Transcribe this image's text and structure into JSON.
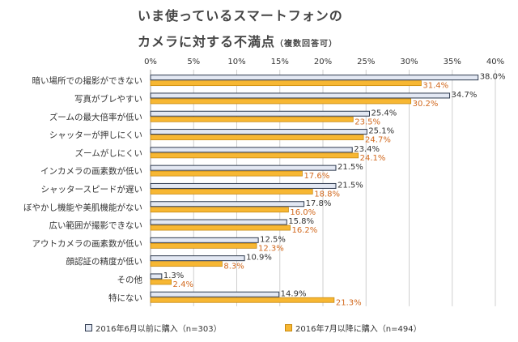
{
  "title": {
    "line1": "いま使っているスマートフォンの",
    "line2": "カメラに対する不満点",
    "note": "（複数回答可）"
  },
  "legend": {
    "series1": "2016年6月以前に購入（n=303）",
    "series2": "2016年7月以降に購入（n=494）"
  },
  "colors": {
    "series1_fill": "#e3e8f3",
    "series1_stroke": "#2e3a4f",
    "series2_fill": "#f7b733",
    "series2_stroke": "#c98a10",
    "series2_label": "#d2691e",
    "grid": "#cfcfcf"
  },
  "chart_data": {
    "type": "bar",
    "orientation": "horizontal",
    "categories": [
      "暗い場所での撮影ができない",
      "写真がブレやすい",
      "ズームの最大倍率が低い",
      "シャッターが押しにくい",
      "ズームがしにくい",
      "インカメラの画素数が低い",
      "シャッタースピードが遅い",
      "ぼやかし機能や美肌機能がない",
      "広い範囲が撮影できない",
      "アウトカメラの画素数が低い",
      "顔認証の精度が低い",
      "その他",
      "特にない"
    ],
    "series": [
      {
        "name": "2016年6月以前に購入（n=303）",
        "values": [
          38.0,
          34.7,
          25.4,
          25.1,
          23.4,
          21.5,
          21.5,
          17.8,
          15.8,
          12.5,
          10.9,
          1.3,
          14.9
        ],
        "labels": [
          "38.0%",
          "34.7%",
          "25.4%",
          "25.1%",
          "23.4%",
          "21.5%",
          "21.5%",
          "17.8%",
          "15.8%",
          "12.5%",
          "10.9%",
          "1.3%",
          "14.9%"
        ]
      },
      {
        "name": "2016年7月以降に購入（n=494）",
        "values": [
          31.4,
          30.2,
          23.5,
          24.7,
          24.1,
          17.6,
          18.8,
          16.0,
          16.2,
          12.3,
          8.3,
          2.4,
          21.3
        ],
        "labels": [
          "31.4%",
          "30.2%",
          "23.5%",
          "24.7%",
          "24.1%",
          "17.6%",
          "18.8%",
          "16.0%",
          "16.2%",
          "12.3%",
          "8.3%",
          "2.4%",
          "21.3%"
        ]
      }
    ],
    "xlim": [
      0,
      40
    ],
    "xticks": [
      "0%",
      "5%",
      "10%",
      "15%",
      "20%",
      "25%",
      "30%",
      "35%",
      "40%"
    ],
    "grid": true,
    "legend_position": "bottom"
  }
}
